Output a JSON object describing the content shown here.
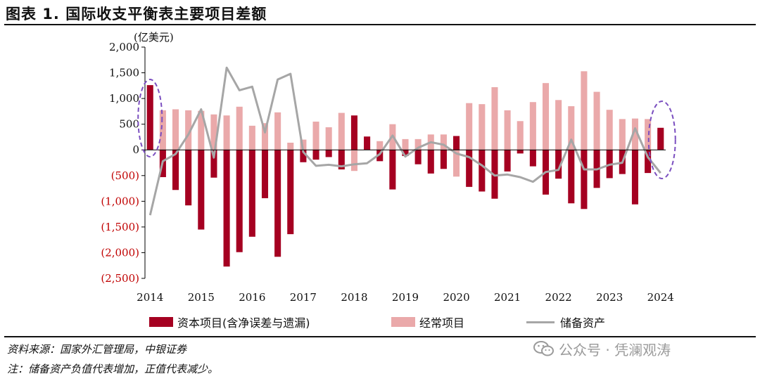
{
  "title": "图表 1. 国际收支平衡表主要项目差额",
  "chart_data": {
    "type": "bar",
    "ylabel": "(亿美元)",
    "ylim": [
      -2500,
      2000
    ],
    "yticks": [
      {
        "value": 2000,
        "label": "2,000"
      },
      {
        "value": 1500,
        "label": "1,500"
      },
      {
        "value": 1000,
        "label": "1,000"
      },
      {
        "value": 500,
        "label": "500"
      },
      {
        "value": 0,
        "label": "0"
      },
      {
        "value": -500,
        "label": "(500)"
      },
      {
        "value": -1000,
        "label": "(1,000)"
      },
      {
        "value": -1500,
        "label": "(1,500)"
      },
      {
        "value": -2000,
        "label": "(2,000)"
      },
      {
        "value": -2500,
        "label": "(2,500)"
      }
    ],
    "xtick_labels": [
      "2014",
      "2015",
      "2016",
      "2017",
      "2018",
      "2019",
      "2020",
      "2021",
      "2022",
      "2023",
      "2024"
    ],
    "series": [
      {
        "name": "资本项目(含净误差与遗漏)",
        "type": "bar",
        "color": "#a50021",
        "values": [
          1260,
          -530,
          -780,
          -1080,
          -1550,
          -540,
          -2270,
          -1990,
          -1690,
          -940,
          -2080,
          -1640,
          -240,
          -190,
          -140,
          -380,
          670,
          260,
          -220,
          -770,
          -120,
          -280,
          -460,
          -370,
          270,
          -720,
          -810,
          -950,
          -420,
          -70,
          -320,
          -870,
          -560,
          -1040,
          -1150,
          -740,
          -550,
          -470,
          -1060,
          -450,
          430
        ]
      },
      {
        "name": "经常项目",
        "type": "bar",
        "color": "#eaa9aa",
        "values": [
          0,
          770,
          790,
          770,
          760,
          690,
          670,
          840,
          470,
          520,
          730,
          140,
          200,
          550,
          440,
          720,
          -410,
          60,
          170,
          500,
          210,
          210,
          300,
          300,
          -520,
          910,
          890,
          1220,
          770,
          560,
          930,
          1300,
          970,
          850,
          1530,
          1130,
          780,
          600,
          610,
          600,
          390
        ]
      },
      {
        "name": "储备资产",
        "type": "line",
        "color": "#a6a6a6",
        "values": [
          -1270,
          -220,
          -80,
          300,
          790,
          -150,
          1600,
          1160,
          1230,
          340,
          1370,
          1480,
          -40,
          -310,
          -290,
          -320,
          -280,
          -260,
          -80,
          280,
          -130,
          40,
          150,
          100,
          -70,
          -140,
          -300,
          -500,
          -480,
          -530,
          -620,
          -430,
          -390,
          200,
          -380,
          -380,
          -290,
          -250,
          420,
          -140,
          -450
        ]
      }
    ],
    "annotations": [
      "highlight-2014-ellipse",
      "highlight-2024-ellipse"
    ]
  },
  "source_text": "资料来源：国家外汇管理局，中银证券",
  "note_text": "注：储备资产负值代表增加，正值代表减少。",
  "watermark_text": "公众号 · 凭澜观涛"
}
